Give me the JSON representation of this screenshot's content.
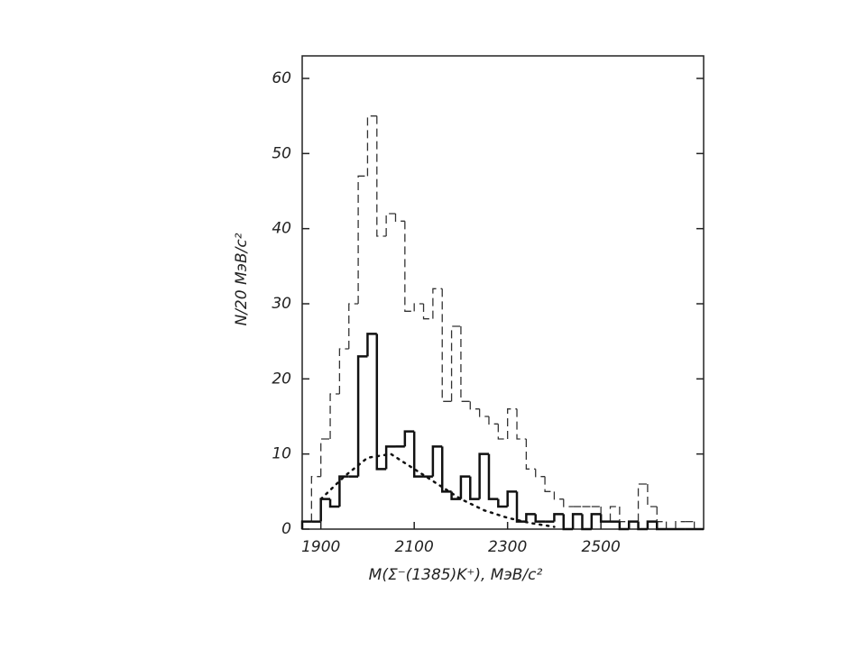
{
  "chart_data": {
    "type": "histogram",
    "xlabel": "M(Σ⁻(1385)K⁺), МэВ/c²",
    "ylabel": "N/20 МэВ/c²",
    "bins": [
      1860,
      1880,
      1900,
      1920,
      1940,
      1960,
      1980,
      2000,
      2020,
      2040,
      2060,
      2080,
      2100,
      2120,
      2140,
      2160,
      2180,
      2200,
      2220,
      2240,
      2260,
      2280,
      2300,
      2320,
      2340,
      2360,
      2380,
      2400,
      2420,
      2440,
      2460,
      2480,
      2500,
      2520,
      2540,
      2560,
      2580,
      2600,
      2620,
      2640,
      2660,
      2680,
      2700,
      2720
    ],
    "series": [
      {
        "color": "#333333",
        "style": "dashed",
        "values": [
          1,
          7,
          12,
          18,
          24,
          30,
          47,
          55,
          39,
          42,
          41,
          29,
          30,
          28,
          32,
          17,
          27,
          17,
          16,
          15,
          14,
          12,
          16,
          12,
          8,
          7,
          5,
          4,
          3,
          3,
          3,
          3,
          1,
          3,
          1,
          1,
          6,
          3,
          1,
          0,
          1,
          1,
          0
        ]
      },
      {
        "color": "#111111",
        "style": "solid",
        "values": [
          1,
          1,
          4,
          3,
          7,
          7,
          23,
          26,
          8,
          11,
          11,
          13,
          7,
          7,
          11,
          5,
          4,
          7,
          4,
          10,
          4,
          3,
          5,
          1,
          2,
          1,
          1,
          2,
          0,
          2,
          0,
          2,
          1,
          1,
          0,
          1,
          0,
          1,
          0,
          0,
          0,
          0,
          0
        ]
      }
    ],
    "curve": {
      "color": "#111111",
      "style": "dotted",
      "x": [
        1900,
        1950,
        2000,
        2050,
        2100,
        2150,
        2200,
        2250,
        2300,
        2350,
        2400
      ],
      "values": [
        4,
        7,
        9.5,
        10,
        8,
        6,
        4,
        2.5,
        1.5,
        0.8,
        0.3
      ]
    },
    "xlim": [
      1860,
      2720
    ],
    "ylim": [
      0,
      63
    ],
    "xticks": [
      1900,
      2100,
      2300,
      2500
    ],
    "yticks": [
      0,
      10,
      20,
      30,
      40,
      50,
      60
    ]
  }
}
